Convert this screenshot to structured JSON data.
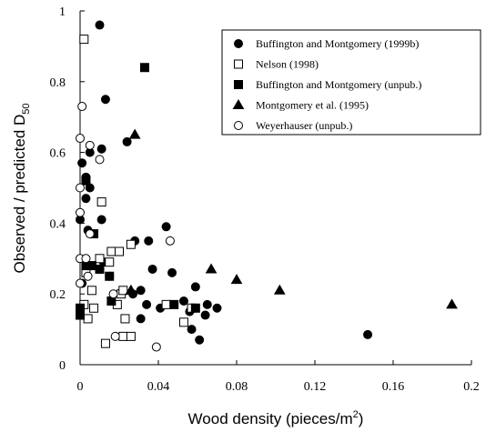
{
  "chart_data": {
    "type": "scatter",
    "xlabel": [
      "Wood density (pieces/m",
      "2",
      ")"
    ],
    "ylabel": [
      "Observed / predicted D",
      "50"
    ],
    "xlim": [
      0,
      0.2
    ],
    "xticks": [
      0,
      0.04,
      0.08,
      0.12,
      0.16,
      0.2
    ],
    "ylim": [
      0,
      1
    ],
    "yticks": [
      0,
      0.2,
      0.4,
      0.6,
      0.8,
      1
    ],
    "legend": "upper right",
    "series": [
      {
        "name": "Buffington and Montgomery (1999b)",
        "color": "#000000",
        "marker": "circle",
        "filled": true,
        "x": [
          0.01,
          0.013,
          0.001,
          0.005,
          0.011,
          0.024,
          0.003,
          0.003,
          0.005,
          0.0,
          0.011,
          0.004,
          0.044,
          0.035,
          0.028,
          0.037,
          0.047,
          0.059,
          0.012,
          0.01,
          0.001,
          0.002,
          0.027,
          0.031,
          0.034,
          0.041,
          0.053,
          0.065,
          0.07,
          0.057,
          0.061,
          0.056,
          0.064,
          0.031,
          0.147,
          0.015
        ],
        "values": [
          0.96,
          0.75,
          0.57,
          0.6,
          0.61,
          0.63,
          0.53,
          0.47,
          0.5,
          0.41,
          0.41,
          0.38,
          0.39,
          0.35,
          0.35,
          0.27,
          0.26,
          0.22,
          0.29,
          0.27,
          0.23,
          0.17,
          0.2,
          0.21,
          0.17,
          0.16,
          0.18,
          0.17,
          0.16,
          0.1,
          0.07,
          0.15,
          0.14,
          0.13,
          0.085,
          0.25
        ]
      },
      {
        "name": "Nelson (1998)",
        "color": "#000000",
        "marker": "square",
        "filled": false,
        "x": [
          0.002,
          0.011,
          0.026,
          0.016,
          0.02,
          0.015,
          0.01,
          0.003,
          0.006,
          0.021,
          0.022,
          0.002,
          0.007,
          0.004,
          0.013,
          0.023,
          0.022,
          0.026,
          0.044,
          0.053,
          0.057,
          0.019
        ],
        "values": [
          0.92,
          0.46,
          0.34,
          0.32,
          0.32,
          0.29,
          0.3,
          0.26,
          0.21,
          0.2,
          0.21,
          0.17,
          0.16,
          0.13,
          0.06,
          0.13,
          0.08,
          0.08,
          0.17,
          0.12,
          0.16,
          0.17
        ]
      },
      {
        "name": "Buffington and Montgomery (unpub.)",
        "color": "#000000",
        "marker": "square",
        "filled": true,
        "x": [
          0.033,
          0.003,
          0.007,
          0.003,
          0.006,
          0.01,
          0.015,
          0.016,
          0.0,
          0.0,
          0.048,
          0.059
        ],
        "values": [
          0.84,
          0.52,
          0.37,
          0.28,
          0.28,
          0.27,
          0.25,
          0.18,
          0.16,
          0.14,
          0.17,
          0.16
        ]
      },
      {
        "name": "Montgomery et al. (1995)",
        "color": "#000000",
        "marker": "triangle",
        "filled": true,
        "x": [
          0.028,
          0.067,
          0.08,
          0.102,
          0.19,
          0.026
        ],
        "values": [
          0.65,
          0.27,
          0.24,
          0.21,
          0.17,
          0.21
        ]
      },
      {
        "name": "Weyerhauser (unpub.)",
        "color": "#000000",
        "marker": "circle",
        "filled": false,
        "x": [
          0.001,
          0.0,
          0.005,
          0.01,
          0.0,
          0.0,
          0.005,
          0.046,
          0.0,
          0.003,
          0.004,
          0.017,
          0.018,
          0.039,
          0.0
        ],
        "values": [
          0.73,
          0.64,
          0.62,
          0.58,
          0.5,
          0.43,
          0.37,
          0.35,
          0.3,
          0.3,
          0.25,
          0.2,
          0.08,
          0.05,
          0.23
        ]
      }
    ]
  }
}
